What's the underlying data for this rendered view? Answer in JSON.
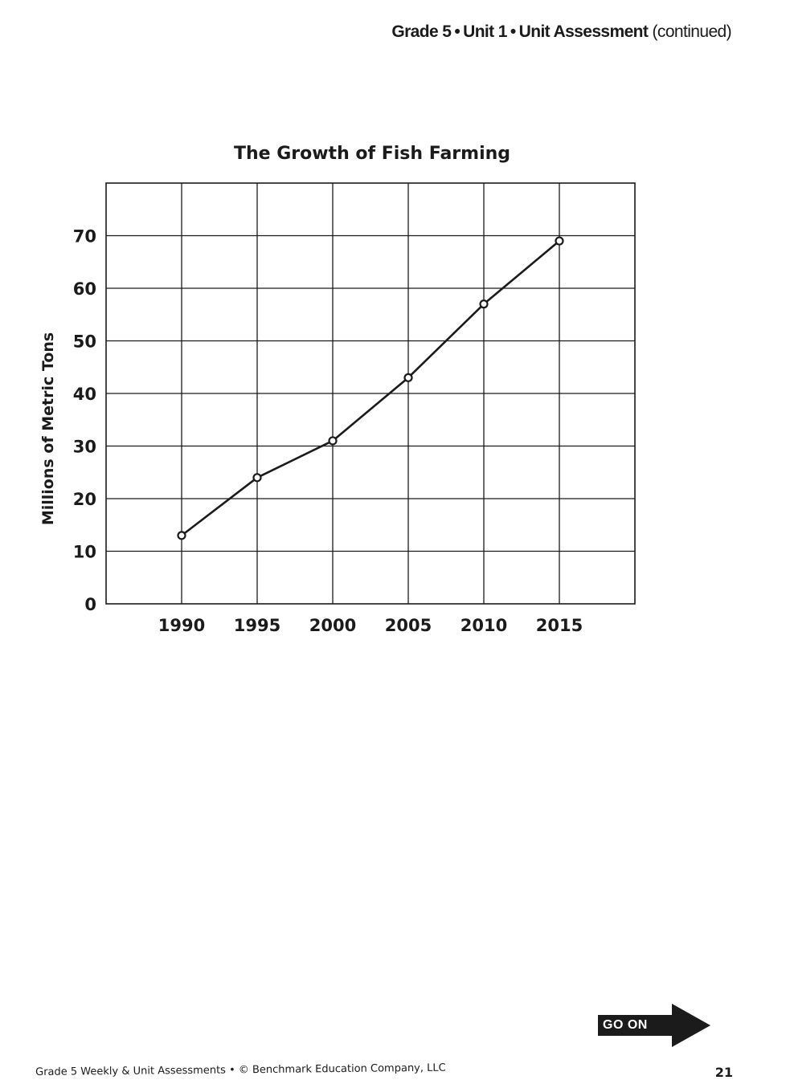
{
  "header": {
    "grade": "Grade 5",
    "separator": "•",
    "unit": "Unit 1",
    "assessment": "Unit Assessment",
    "continued": "(continued)"
  },
  "chart_data": {
    "type": "line",
    "title": "The Growth of Fish Farming",
    "xlabel": "",
    "ylabel": "Millions of Metric Tons",
    "categories": [
      "1990",
      "1995",
      "2000",
      "2005",
      "2010",
      "2015"
    ],
    "series": [
      {
        "values": [
          13,
          24,
          31,
          43,
          57,
          69
        ]
      }
    ],
    "y_ticks": [
      "0",
      "10",
      "20",
      "30",
      "40",
      "50",
      "60",
      "70"
    ],
    "ylim": [
      0,
      80
    ],
    "grid": true,
    "markers": "open-circle",
    "line_color": "#1b1b1b"
  },
  "go_on": {
    "label": "GO ON"
  },
  "footer": {
    "text": "Grade 5 Weekly & Unit Assessments • © Benchmark Education Company, LLC",
    "page_number": "21"
  }
}
